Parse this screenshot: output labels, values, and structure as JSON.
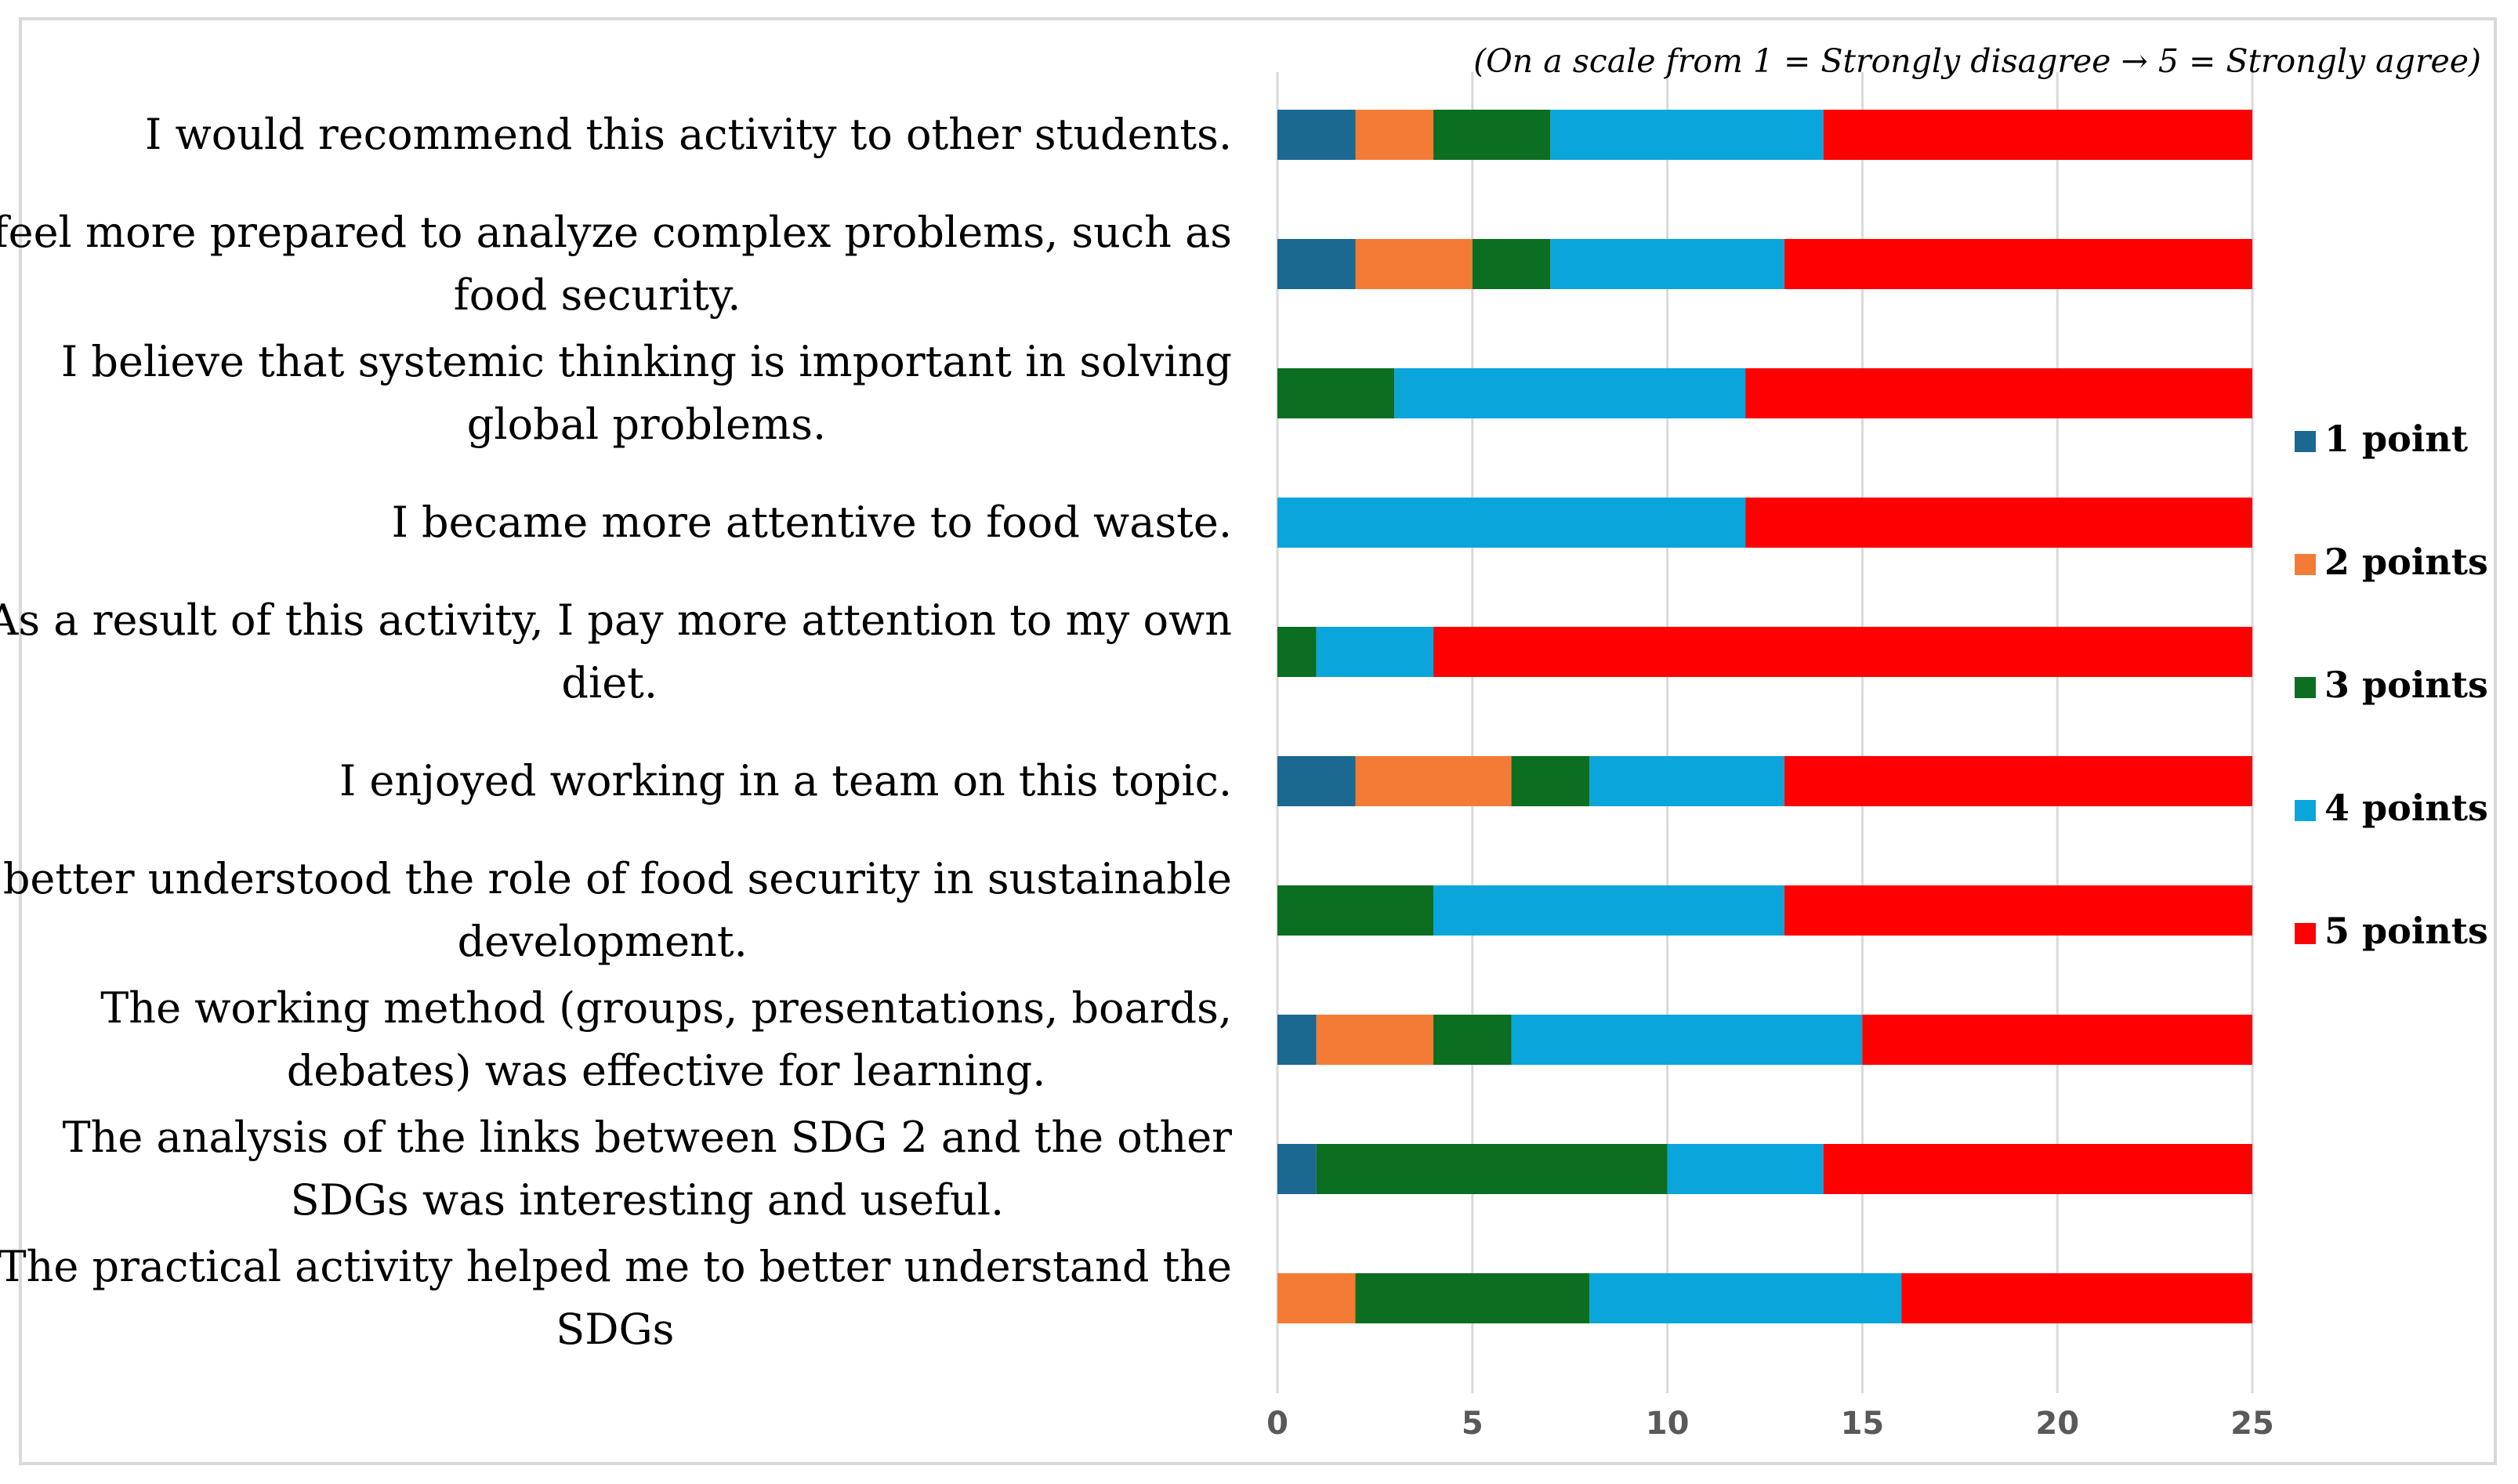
{
  "chart_data": {
    "type": "bar",
    "orientation": "horizontal",
    "stacked": true,
    "note": "(On a scale from 1 = Strongly disagree → 5 = Strongly agree)",
    "categories": [
      [
        "I would recommend this activity to other students."
      ],
      [
        "I feel more prepared to analyze complex problems, such as",
        "food security."
      ],
      [
        "I believe that systemic thinking is important in solving",
        "global problems."
      ],
      [
        "I became more attentive to food waste."
      ],
      [
        "As a result of this activity, I pay more attention to my own",
        "diet."
      ],
      [
        "I enjoyed working in a team on this topic."
      ],
      [
        "I better understood the role of food security in sustainable",
        "development."
      ],
      [
        "The working method (groups, presentations, boards,",
        "debates) was effective for learning."
      ],
      [
        "The analysis of the links between SDG 2 and the other",
        "SDGs was interesting and useful."
      ],
      [
        "The practical activity helped me to better understand the",
        "SDGs"
      ]
    ],
    "series": [
      {
        "name": "1 point",
        "color": "#1b6890",
        "values": [
          2,
          2,
          0,
          0,
          0,
          2,
          0,
          1,
          1,
          0
        ]
      },
      {
        "name": "2 points",
        "color": "#f47b36",
        "values": [
          2,
          3,
          0,
          0,
          0,
          4,
          0,
          3,
          0,
          2
        ]
      },
      {
        "name": "3 points",
        "color": "#0b6e20",
        "values": [
          3,
          2,
          3,
          0,
          1,
          2,
          4,
          2,
          9,
          6
        ]
      },
      {
        "name": "4 points",
        "color": "#0aa5da",
        "values": [
          7,
          6,
          9,
          12,
          3,
          5,
          9,
          9,
          4,
          8
        ]
      },
      {
        "name": "5 points",
        "color": "#fe0000",
        "values": [
          11,
          12,
          13,
          13,
          21,
          12,
          12,
          10,
          11,
          9
        ]
      }
    ],
    "xlim": [
      0,
      25
    ],
    "xticks": [
      0,
      5,
      10,
      15,
      20,
      25
    ],
    "grid": true,
    "legend_position": "right"
  }
}
